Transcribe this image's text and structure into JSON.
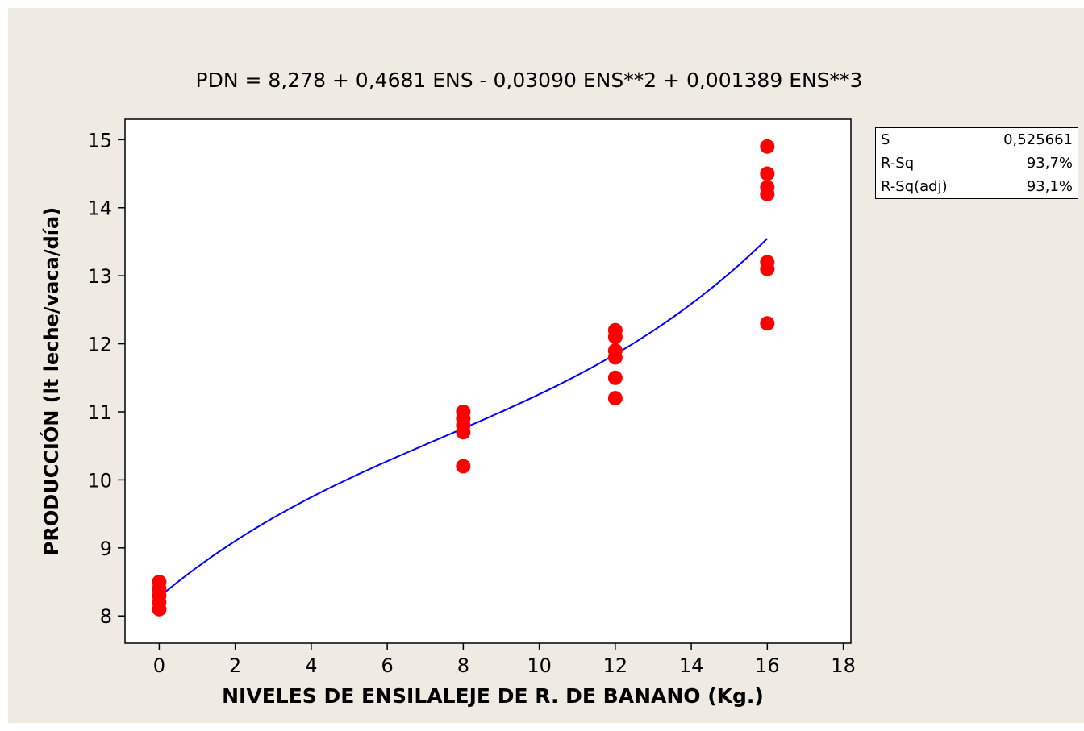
{
  "chart_data": {
    "type": "scatter",
    "title": "PDN =  8,278 + 0,4681 ENS - 0,03090 ENS**2 + 0,001389 ENS**3",
    "xlabel": "NIVELES DE ENSILALEJE DE R. DE BANANO (Kg.)",
    "ylabel": "PRODUCCIÓN (lt leche/vaca/día)",
    "xlim": [
      -0.9,
      18.2
    ],
    "ylim": [
      7.6,
      15.3
    ],
    "xticks": [
      "0",
      "2",
      "4",
      "6",
      "8",
      "10",
      "12",
      "14",
      "16",
      "18"
    ],
    "yticks": [
      "8",
      "9",
      "10",
      "11",
      "12",
      "13",
      "14",
      "15"
    ],
    "grid": false,
    "colors": {
      "points": "#ff0000",
      "fit": "#0000ff",
      "plot_bg": "#ffffff",
      "figure_bg": "#efebe2"
    },
    "points": [
      {
        "x": 0,
        "y": 8.1
      },
      {
        "x": 0,
        "y": 8.2
      },
      {
        "x": 0,
        "y": 8.3
      },
      {
        "x": 0,
        "y": 8.4
      },
      {
        "x": 0,
        "y": 8.5
      },
      {
        "x": 8,
        "y": 10.2
      },
      {
        "x": 8,
        "y": 10.7
      },
      {
        "x": 8,
        "y": 10.8
      },
      {
        "x": 8,
        "y": 10.9
      },
      {
        "x": 8,
        "y": 11.0
      },
      {
        "x": 12,
        "y": 11.2
      },
      {
        "x": 12,
        "y": 11.5
      },
      {
        "x": 12,
        "y": 11.8
      },
      {
        "x": 12,
        "y": 11.9
      },
      {
        "x": 12,
        "y": 12.1
      },
      {
        "x": 12,
        "y": 12.2
      },
      {
        "x": 16,
        "y": 12.3
      },
      {
        "x": 16,
        "y": 13.1
      },
      {
        "x": 16,
        "y": 13.2
      },
      {
        "x": 16,
        "y": 14.2
      },
      {
        "x": 16,
        "y": 14.3
      },
      {
        "x": 16,
        "y": 14.5
      },
      {
        "x": 16,
        "y": 14.9
      }
    ],
    "fit_coefficients": [
      8.278,
      0.4681,
      -0.0309,
      0.001389
    ],
    "fit_range": [
      0,
      16
    ],
    "stats": [
      {
        "label": "S",
        "value": "0,525661"
      },
      {
        "label": "R-Sq",
        "value": "93,7%"
      },
      {
        "label": "R-Sq(adj)",
        "value": "93,1%"
      }
    ]
  }
}
